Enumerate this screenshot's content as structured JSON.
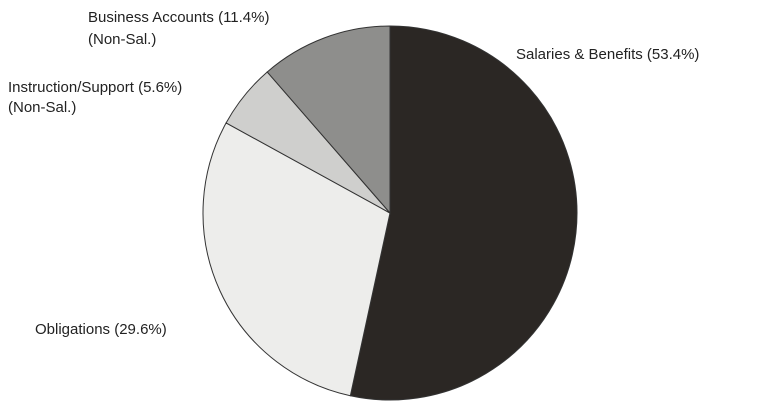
{
  "chart_data": {
    "type": "pie",
    "categories": [
      "Salaries & Benefits",
      "Obligations",
      "Instruction/Support",
      "Business Accounts"
    ],
    "values": [
      53.4,
      29.6,
      5.6,
      11.4
    ],
    "value_labels": [
      "(53.4%)",
      "(29.6%)",
      "(5.6%)",
      "(11.4%)"
    ],
    "annotations": [
      "(Non-Sal.)",
      "(Non-Sal.)"
    ],
    "colors": [
      "#2b2724",
      "#ededeb",
      "#cfcfcd",
      "#8e8e8c"
    ]
  }
}
